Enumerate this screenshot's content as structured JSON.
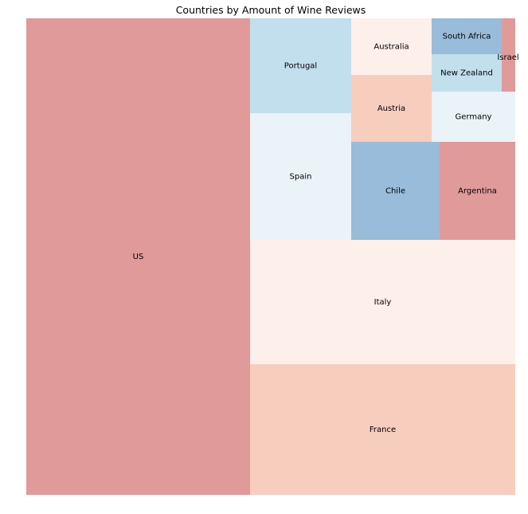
{
  "chart_data": {
    "type": "treemap",
    "title": "Countries by Amount of Wine Reviews",
    "tiles": [
      {
        "label": "US",
        "color": "#e19a9a"
      },
      {
        "label": "France",
        "color": "#f7cdbd"
      },
      {
        "label": "Italy",
        "color": "#fdf0ea"
      },
      {
        "label": "Spain",
        "color": "#eaf3f7"
      },
      {
        "label": "Portugal",
        "color": "#c2dfee"
      },
      {
        "label": "Chile",
        "color": "#98bcd9"
      },
      {
        "label": "Argentina",
        "color": "#e19a9a"
      },
      {
        "label": "Austria",
        "color": "#f7cdbd"
      },
      {
        "label": "Australia",
        "color": "#fdf0ea"
      },
      {
        "label": "Germany",
        "color": "#eaf3f7"
      },
      {
        "label": "New Zealand",
        "color": "#c2dfee"
      },
      {
        "label": "South Africa",
        "color": "#98bcd9"
      },
      {
        "label": "Israel",
        "color": "#e19a9a"
      }
    ]
  }
}
